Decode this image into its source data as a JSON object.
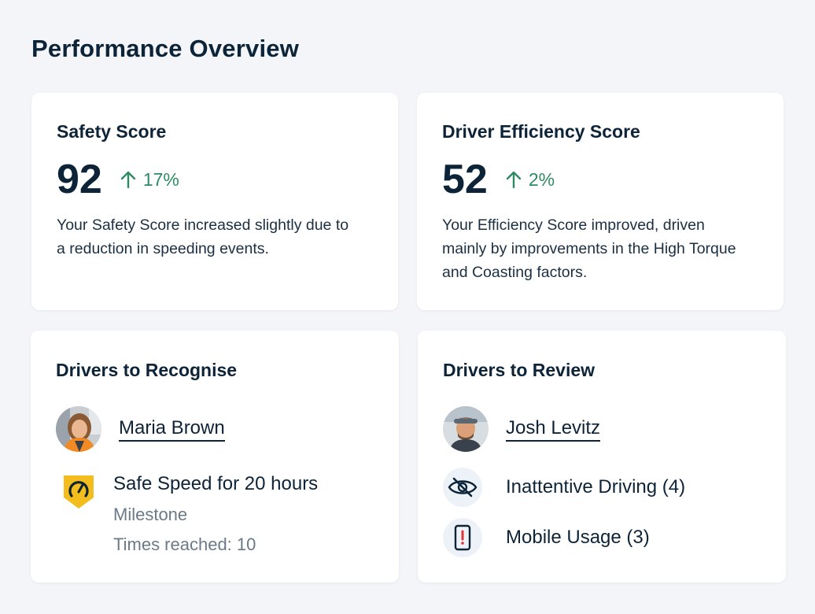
{
  "page": {
    "title": "Performance Overview"
  },
  "safety": {
    "title": "Safety Score",
    "value": "92",
    "change": "17%",
    "trend_icon": "arrow-up-icon",
    "description": "Your Safety Score increased slightly due to a reduction in speeding events."
  },
  "efficiency": {
    "title": "Driver Efficiency Score",
    "value": "52",
    "change": "2%",
    "trend_icon": "arrow-up-icon",
    "description": "Your Efficiency Score improved, driven mainly by improvements in the High Torque and Coasting factors."
  },
  "recognise": {
    "title": "Drivers to Recognise",
    "driver_name": "Maria Brown",
    "milestone": {
      "icon": "speedometer-badge-icon",
      "title": "Safe Speed for 20 hours",
      "type": "Milestone",
      "times": "Times reached: 10"
    }
  },
  "review": {
    "title": "Drivers to Review",
    "driver_name": "Josh Levitz",
    "issues": [
      {
        "icon": "eye-slash-icon",
        "label": "Inattentive Driving (4)"
      },
      {
        "icon": "mobile-alert-icon",
        "label": "Mobile Usage (3)"
      }
    ]
  },
  "colors": {
    "background": "#f3f5f8",
    "card": "#ffffff",
    "text": "#0d2438",
    "positive": "#2e8b63",
    "badge": "#f2bd1d",
    "icon_circle": "#edf2f8"
  }
}
